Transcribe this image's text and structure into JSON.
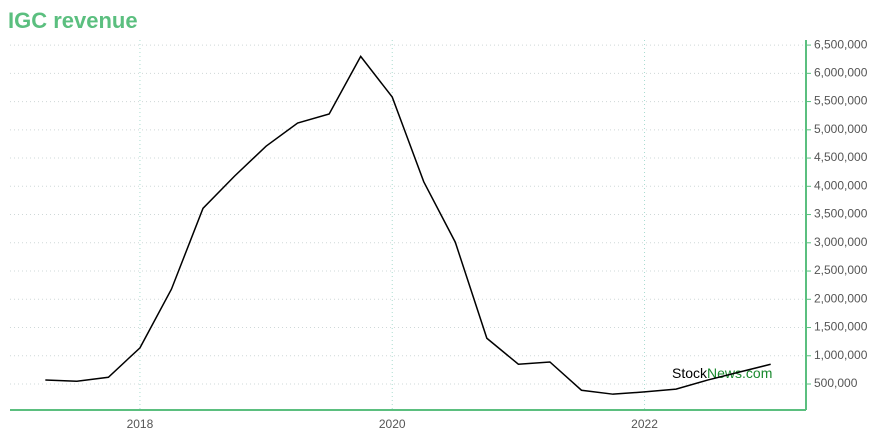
{
  "chart_data": {
    "type": "line",
    "title": "IGC revenue",
    "x": [
      2017.25,
      2017.5,
      2017.75,
      2018,
      2018.25,
      2018.5,
      2018.75,
      2019,
      2019.25,
      2019.5,
      2019.75,
      2020,
      2020.25,
      2020.5,
      2020.75,
      2021,
      2021.25,
      2021.5,
      2021.75,
      2022,
      2022.25,
      2022.5,
      2022.75,
      2023
    ],
    "series": [
      {
        "color": "#000000",
        "values": [
          570000,
          550000,
          620000,
          1140000,
          2180000,
          3610000,
          4180000,
          4710000,
          5120000,
          5280000,
          6300000,
          5580000,
          4080000,
          3010000,
          1310000,
          850000,
          890000,
          390000,
          320000,
          360000,
          410000,
          570000,
          710000,
          850000
        ]
      }
    ],
    "xlim": [
      2016.97,
      2023.28
    ],
    "xticks": [
      2018,
      2020,
      2022
    ],
    "ylim": [
      40000,
      6590000
    ],
    "yticks": [
      {
        "value": 500000,
        "label": "500,000"
      },
      {
        "value": 1000000,
        "label": "1,000,000"
      },
      {
        "value": 1500000,
        "label": "1,500,000"
      },
      {
        "value": 2000000,
        "label": "2,000,000"
      },
      {
        "value": 2500000,
        "label": "2,500,000"
      },
      {
        "value": 3000000,
        "label": "3,000,000"
      },
      {
        "value": 3500000,
        "label": "3,500,000"
      },
      {
        "value": 4000000,
        "label": "4,000,000"
      },
      {
        "value": 4500000,
        "label": "4,500,000"
      },
      {
        "value": 5000000,
        "label": "5,000,000"
      },
      {
        "value": 5500000,
        "label": "5,500,000"
      },
      {
        "value": 6000000,
        "label": "6,000,000"
      },
      {
        "value": 6500000,
        "label": "6,500,000"
      }
    ],
    "grid": true,
    "axis_color": "#5bbf7f",
    "watermark": [
      "Stock",
      "News.com"
    ]
  }
}
